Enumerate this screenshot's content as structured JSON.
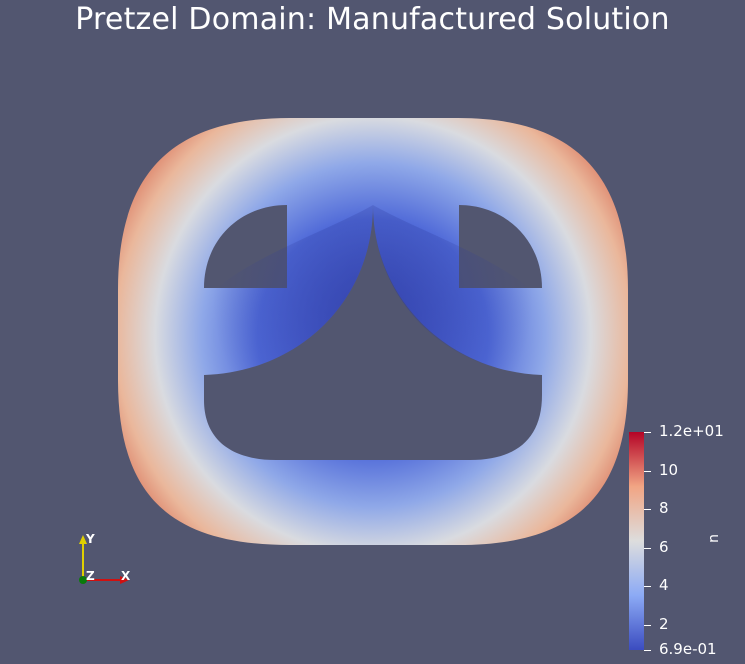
{
  "title": "Pretzel Domain: Manufactured Solution",
  "colorbar": {
    "variable": "u",
    "max_label": "1.2e+01",
    "min_label": "6.9e-01",
    "range": [
      0.69,
      12
    ],
    "ticks": [
      {
        "label": "10",
        "value": 10
      },
      {
        "label": "8",
        "value": 8
      },
      {
        "label": "6",
        "value": 6
      },
      {
        "label": "4",
        "value": 4
      },
      {
        "label": "2",
        "value": 2
      }
    ],
    "colors": {
      "low": "#3b4cc0",
      "mid": "#dddddd",
      "high": "#b40426"
    }
  },
  "axes_triad": {
    "y_label": "Y",
    "z_label": "Z",
    "x_label": "X",
    "y_color": "#e0d000",
    "x_color": "#d01010",
    "z_color": "#0a7a0a"
  },
  "colors": {
    "background": "#525670"
  }
}
